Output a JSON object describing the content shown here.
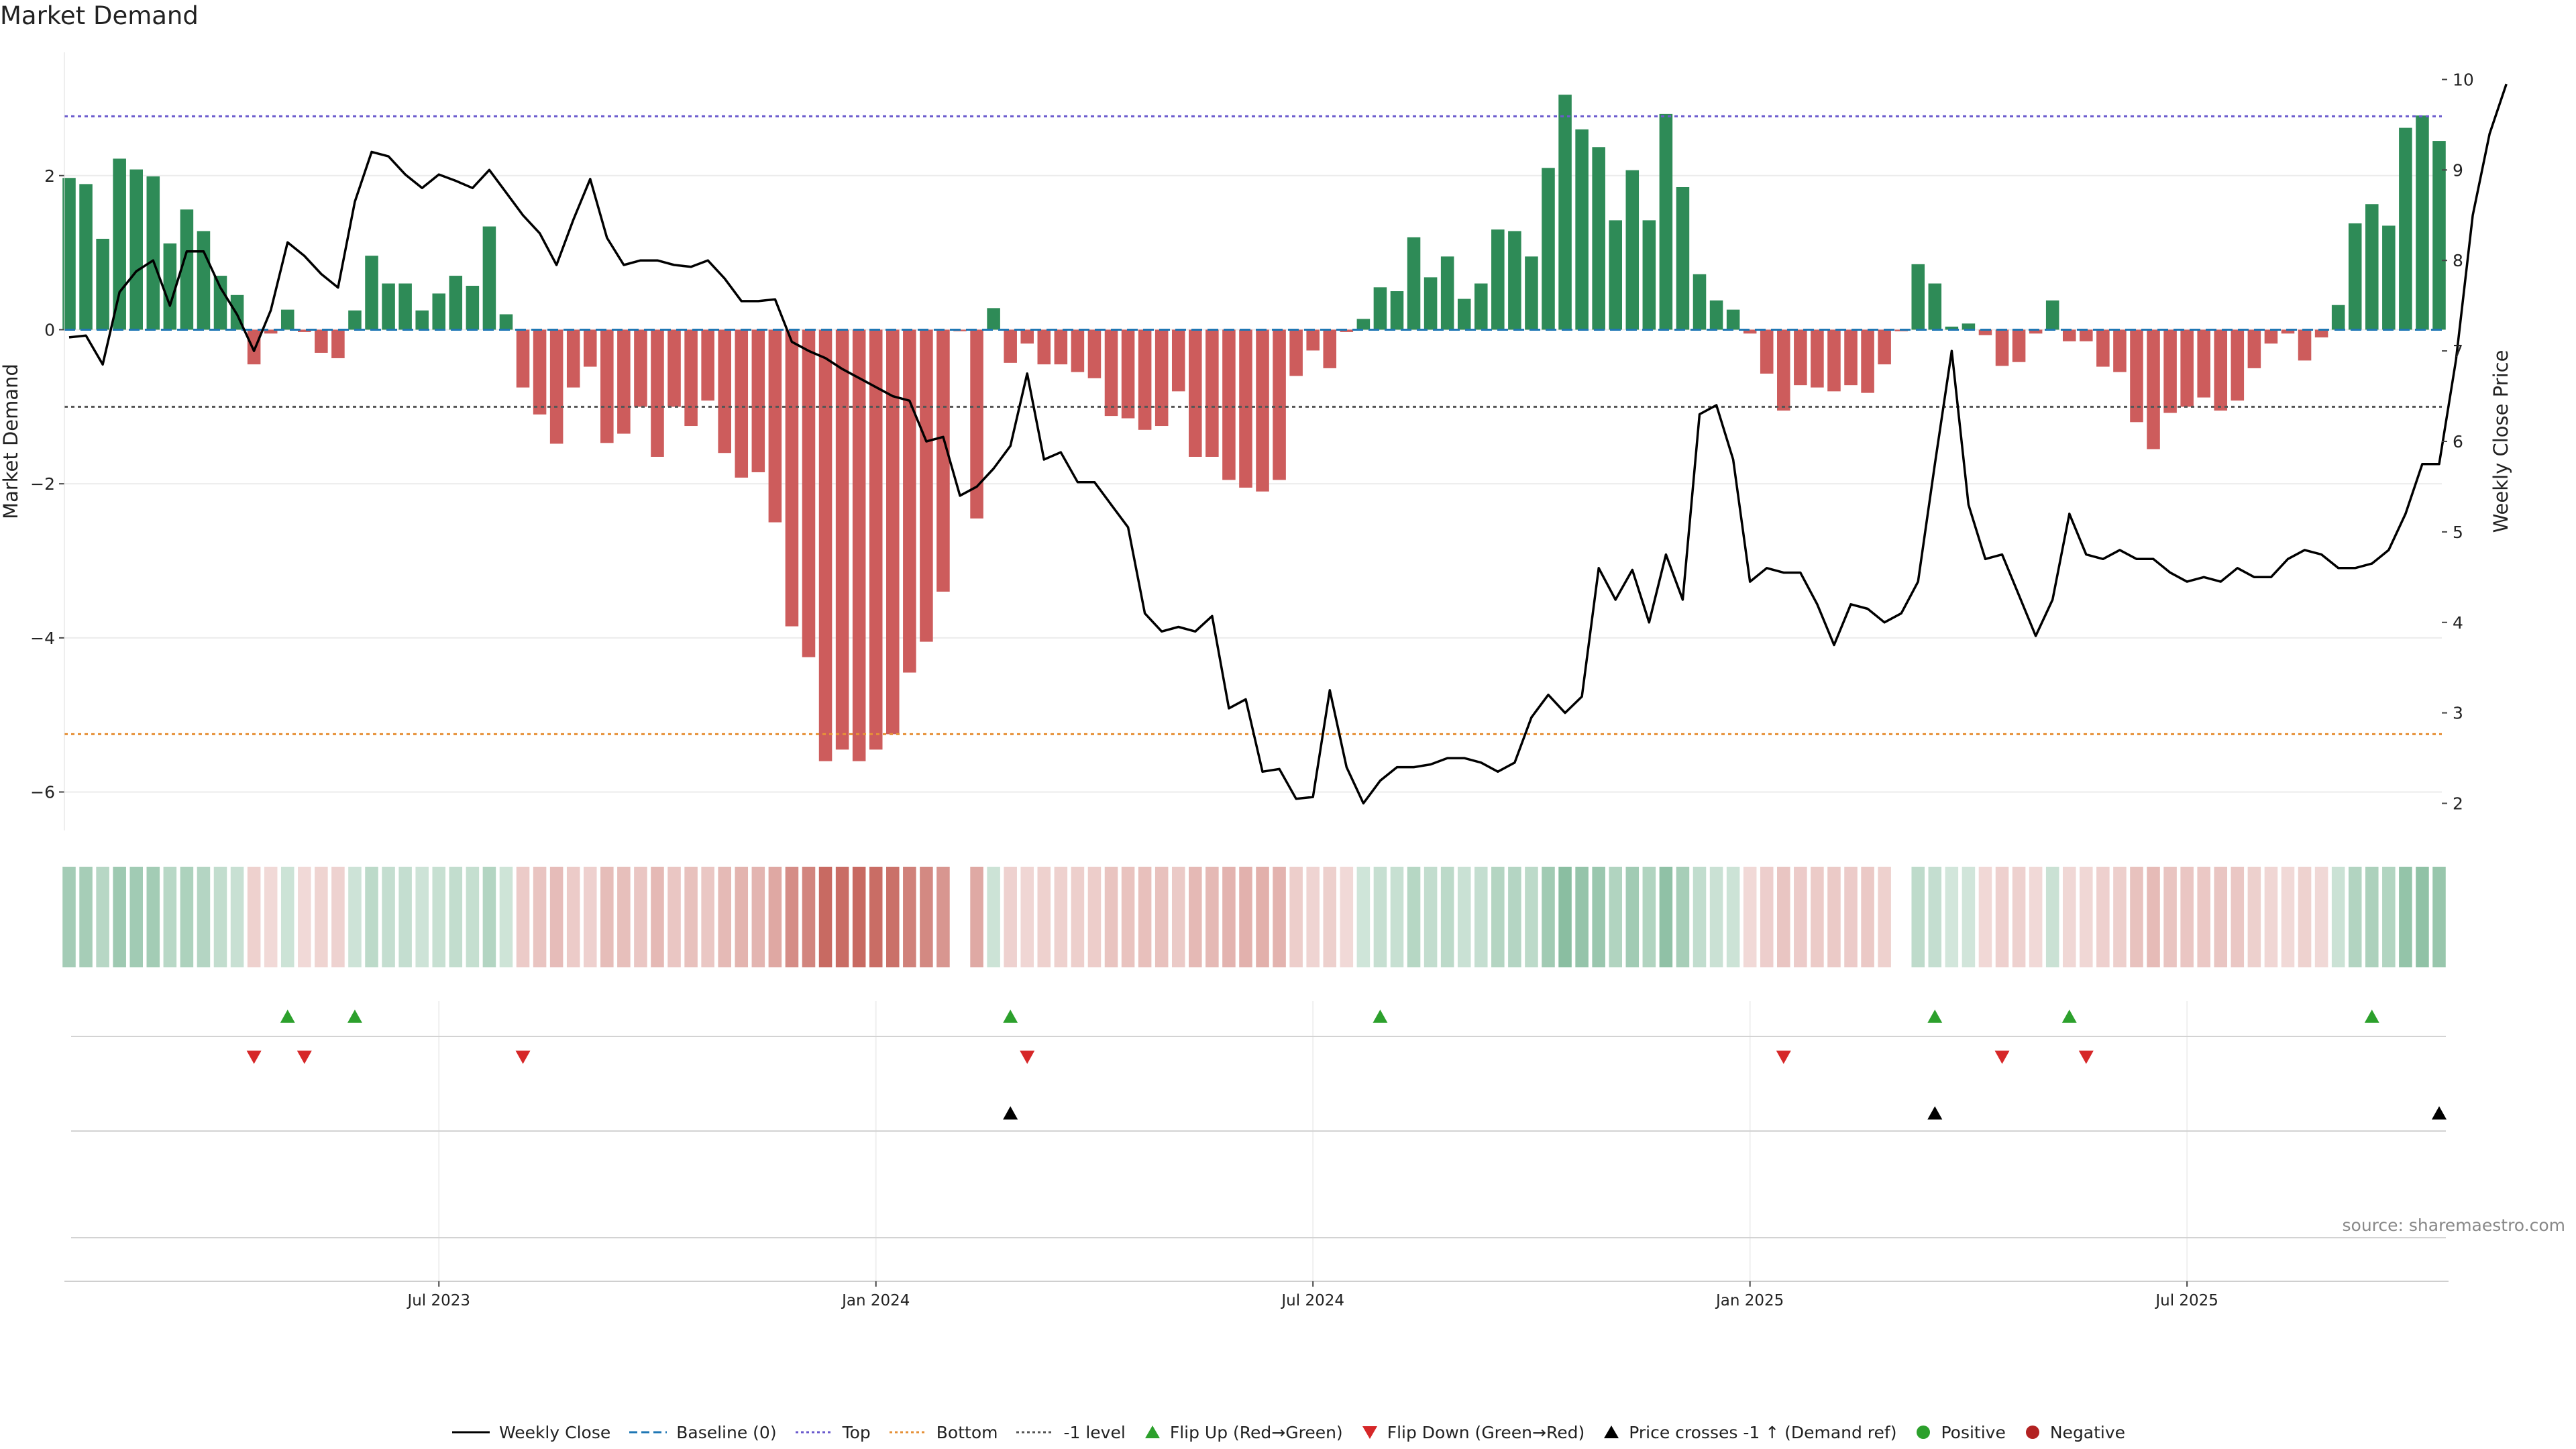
{
  "title": "Market Demand",
  "source": "source: sharemaestro.com",
  "colors": {
    "positive": "#2e8b57",
    "negative": "#cd5c5c",
    "price": "#000000",
    "baseline": "#1f77b4",
    "top": "#6a5acd",
    "bottom": "#e69138",
    "neg1": "#555555",
    "flipUp": "#2ca02c",
    "flipDown": "#d62728",
    "cross": "#000000"
  },
  "chart_data": {
    "type": "bar",
    "title": "Market Demand",
    "ylabel": "Market Demand",
    "y2label": "Weekly Close Price",
    "ylim": [
      -6.5,
      3.6
    ],
    "y2lim": [
      1.7,
      10.3
    ],
    "yticks": [
      -6,
      -4,
      -2,
      0,
      2
    ],
    "y2ticks": [
      2,
      3,
      4,
      5,
      6,
      7,
      8,
      9,
      10
    ],
    "levels": {
      "baseline": 0,
      "top": 2.77,
      "bottom": -5.25,
      "neg1": -1.0
    },
    "x_ticks": [
      {
        "index": 22,
        "label": "Jul 2023"
      },
      {
        "index": 48,
        "label": "Jan 2024"
      },
      {
        "index": 74,
        "label": "Jul 2024"
      },
      {
        "index": 100,
        "label": "Jan 2025"
      },
      {
        "index": 126,
        "label": "Jul 2025"
      }
    ],
    "demand": [
      1.97,
      1.89,
      1.18,
      2.22,
      2.08,
      1.99,
      1.12,
      1.56,
      1.28,
      0.7,
      0.45,
      -0.45,
      -0.05,
      0.26,
      -0.03,
      -0.3,
      -0.37,
      0.25,
      0.96,
      0.6,
      0.6,
      0.25,
      0.47,
      0.7,
      0.57,
      1.34,
      0.2,
      -0.75,
      -1.1,
      -1.48,
      -0.75,
      -0.48,
      -1.47,
      -1.35,
      -1.0,
      -1.65,
      -1.0,
      -1.25,
      -0.92,
      -1.6,
      -1.92,
      -1.85,
      -2.5,
      -3.85,
      -4.25,
      -5.6,
      -5.45,
      -5.6,
      -5.45,
      -5.25,
      -4.45,
      -4.05,
      -3.4,
      -0.02,
      -2.45,
      0.28,
      -0.43,
      -0.18,
      -0.45,
      -0.45,
      -0.55,
      -0.63,
      -1.12,
      -1.15,
      -1.3,
      -1.25,
      -0.8,
      -1.65,
      -1.65,
      -1.95,
      -2.05,
      -2.1,
      -1.95,
      -0.6,
      -0.27,
      -0.5,
      -0.03,
      0.14,
      0.55,
      0.5,
      1.2,
      0.68,
      0.95,
      0.4,
      0.6,
      1.3,
      1.28,
      0.95,
      2.1,
      3.05,
      2.6,
      2.37,
      1.42,
      2.07,
      1.42,
      2.8,
      1.85,
      0.72,
      0.38,
      0.26,
      -0.05,
      -0.57,
      -1.05,
      -0.72,
      -0.75,
      -0.8,
      -0.72,
      -0.82,
      -0.45,
      -0.02,
      0.85,
      0.6,
      0.04,
      0.08,
      -0.07,
      -0.47,
      -0.42,
      -0.05,
      0.38,
      -0.15,
      -0.15,
      -0.48,
      -0.55,
      -1.2,
      -1.55,
      -1.08,
      -1.0,
      -0.88,
      -1.05,
      -0.92,
      -0.5,
      -0.18,
      -0.05,
      -0.4,
      -0.1,
      0.32,
      1.38,
      1.63,
      1.35,
      2.62,
      2.78,
      2.45
    ],
    "price": [
      7.15,
      7.17,
      6.85,
      7.65,
      7.88,
      8.0,
      7.5,
      8.1,
      8.1,
      7.7,
      7.4,
      7.0,
      7.45,
      8.2,
      8.05,
      7.85,
      7.7,
      8.65,
      9.2,
      9.15,
      8.95,
      8.8,
      8.95,
      8.88,
      8.8,
      9.0,
      8.75,
      8.5,
      8.3,
      7.95,
      8.45,
      8.9,
      8.25,
      7.95,
      8.0,
      8.0,
      7.95,
      7.93,
      8.0,
      7.8,
      7.55,
      7.55,
      7.57,
      7.1,
      7.0,
      6.92,
      6.8,
      6.7,
      6.6,
      6.5,
      6.45,
      6.0,
      6.05,
      5.4,
      5.5,
      5.7,
      5.95,
      6.75,
      5.8,
      5.88,
      5.55,
      5.55,
      5.3,
      5.05,
      4.1,
      3.9,
      3.95,
      3.9,
      4.07,
      3.05,
      3.15,
      2.35,
      2.38,
      2.05,
      2.07,
      3.25,
      2.4,
      2.0,
      2.25,
      2.4,
      2.4,
      2.43,
      2.5,
      2.5,
      2.45,
      2.35,
      2.45,
      2.95,
      3.2,
      3.0,
      3.18,
      4.6,
      4.25,
      4.58,
      4.0,
      4.75,
      4.25,
      6.3,
      6.4,
      5.8,
      4.45,
      4.6,
      4.55,
      4.55,
      4.2,
      3.75,
      4.2,
      4.15,
      4.0,
      4.1,
      4.45,
      5.75,
      7.0,
      5.3,
      4.7,
      4.75,
      4.3,
      3.85,
      4.25,
      5.2,
      4.75,
      4.7,
      4.8,
      4.7,
      4.7,
      4.55,
      4.45,
      4.5,
      4.45,
      4.6,
      4.5,
      4.5,
      4.7,
      4.8,
      4.75,
      4.6,
      4.6,
      4.65,
      4.8,
      5.2,
      5.75,
      5.75,
      6.9,
      8.5,
      9.4,
      9.95
    ],
    "flip_up": [
      13,
      17,
      56,
      78,
      111,
      119,
      137
    ],
    "flip_down": [
      11,
      14,
      27,
      57,
      102,
      115,
      120
    ],
    "price_crosses": [
      56,
      111,
      141
    ]
  },
  "legend": [
    {
      "label": "Weekly Close",
      "kind": "line",
      "color": "#000000"
    },
    {
      "label": "Baseline (0)",
      "kind": "dash",
      "color": "#1f77b4"
    },
    {
      "label": "Top",
      "kind": "dot",
      "color": "#6a5acd"
    },
    {
      "label": "Bottom",
      "kind": "dot",
      "color": "#e69138"
    },
    {
      "label": "-1 level",
      "kind": "dot",
      "color": "#555555"
    },
    {
      "label": "Flip Up (Red→Green)",
      "kind": "tri-up",
      "color": "#2ca02c"
    },
    {
      "label": "Flip Down (Green→Red)",
      "kind": "tri-down",
      "color": "#d62728"
    },
    {
      "label": "Price crosses -1 ↑ (Demand ref)",
      "kind": "tri-up",
      "color": "#000000"
    },
    {
      "label": "Positive",
      "kind": "circle",
      "color": "#2ca02c"
    },
    {
      "label": "Negative",
      "kind": "circle",
      "color": "#b22222"
    }
  ]
}
